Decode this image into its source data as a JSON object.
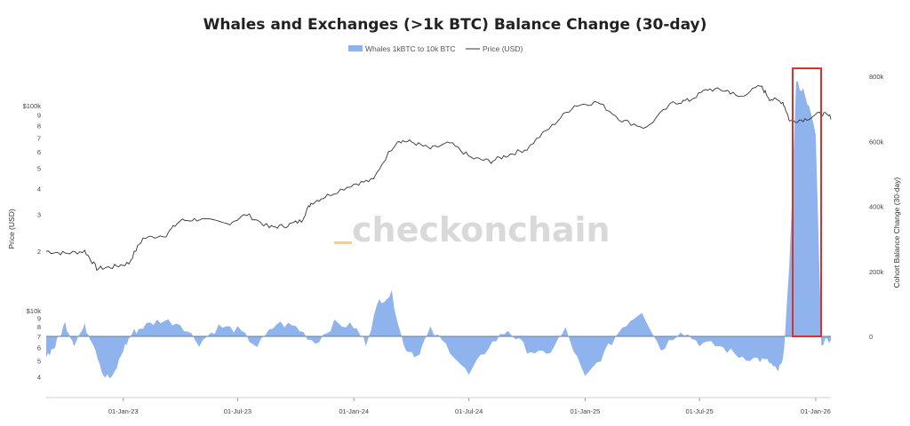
{
  "chart_data": {
    "type": "line+area",
    "title": "Whales and Exchanges (>1k BTC) Balance Change (30-day)",
    "legend": [
      {
        "name": "Whales 1kBTC to 10k BTC",
        "type": "area",
        "color": "#8fb3ec"
      },
      {
        "name": "Price (USD)",
        "type": "line",
        "color": "#333333"
      }
    ],
    "legend_position": "top-center",
    "watermark": "checkonchain",
    "x_tick_labels": [
      "01-Jan-23",
      "01-Jul-23",
      "01-Jan-24",
      "01-Jul-24",
      "01-Jan-25",
      "01-Jul-25",
      "01-Jan-26"
    ],
    "x_ticks": [
      "2023-01-01",
      "2023-07-01",
      "2024-01-01",
      "2024-07-01",
      "2025-01-01",
      "2025-07-01",
      "2026-01-01"
    ],
    "x_range": [
      "2022-09-01",
      "2026-01-25"
    ],
    "y_left_upper": {
      "label": "Price (USD)",
      "scale": "log",
      "range": [
        17000,
        110000
      ],
      "tick_labels": [
        "$100k",
        "9",
        "8",
        "7",
        "6",
        "5",
        "4",
        "3",
        "2"
      ],
      "tick_values": [
        100000,
        90000,
        80000,
        70000,
        60000,
        50000,
        40000,
        30000,
        20000
      ]
    },
    "y_left_lower": {
      "scale": "log",
      "tick_labels": [
        "$10k",
        "9",
        "8",
        "7",
        "6",
        "5",
        "4"
      ],
      "tick_values": [
        10000,
        9000,
        8000,
        7000,
        6000,
        5000,
        4000
      ]
    },
    "y_right": {
      "label": "Cohort Balance Change (30-day)",
      "range": [
        0,
        800000
      ],
      "tick_labels": [
        "800k",
        "600k",
        "400k",
        "200k",
        "0"
      ],
      "tick_values": [
        800000,
        600000,
        400000,
        200000,
        0
      ]
    },
    "series": [
      {
        "name": "Price (USD)",
        "type": "line",
        "x": [
          "2022-09-01",
          "2022-10-01",
          "2022-11-01",
          "2022-11-20",
          "2022-12-15",
          "2023-01-10",
          "2023-02-01",
          "2023-03-10",
          "2023-04-01",
          "2023-05-01",
          "2023-06-15",
          "2023-07-15",
          "2023-08-20",
          "2023-09-15",
          "2023-10-10",
          "2023-10-25",
          "2023-11-20",
          "2024-01-01",
          "2024-02-01",
          "2024-03-10",
          "2024-04-01",
          "2024-05-01",
          "2024-06-01",
          "2024-07-05",
          "2024-08-05",
          "2024-09-01",
          "2024-10-01",
          "2024-11-10",
          "2024-12-15",
          "2025-01-20",
          "2025-02-28",
          "2025-04-08",
          "2025-05-20",
          "2025-06-15",
          "2025-07-14",
          "2025-08-14",
          "2025-09-01",
          "2025-10-06",
          "2025-10-20",
          "2025-11-10",
          "2025-11-21",
          "2025-12-15",
          "2026-01-10",
          "2026-01-25"
        ],
        "values": [
          20000,
          19500,
          20000,
          16500,
          16800,
          17500,
          23000,
          24000,
          28000,
          28500,
          27000,
          30000,
          26000,
          26500,
          28000,
          34000,
          37000,
          42000,
          44000,
          68000,
          67000,
          62000,
          66000,
          56000,
          54000,
          58000,
          62000,
          80000,
          100000,
          104000,
          85000,
          78000,
          103000,
          106000,
          120000,
          118000,
          110000,
          124000,
          108000,
          104000,
          84000,
          86000,
          92000,
          88000
        ]
      },
      {
        "name": "Whales 1kBTC to 10k BTC",
        "type": "area",
        "x": [
          "2022-09-01",
          "2022-09-15",
          "2022-10-01",
          "2022-10-15",
          "2022-11-01",
          "2022-11-15",
          "2022-12-01",
          "2022-12-15",
          "2023-01-01",
          "2023-01-15",
          "2023-02-01",
          "2023-03-01",
          "2023-04-01",
          "2023-05-01",
          "2023-06-01",
          "2023-07-01",
          "2023-08-01",
          "2023-09-01",
          "2023-10-01",
          "2023-11-01",
          "2023-12-01",
          "2024-01-01",
          "2024-01-20",
          "2024-02-10",
          "2024-03-01",
          "2024-03-20",
          "2024-04-10",
          "2024-05-01",
          "2024-06-01",
          "2024-07-01",
          "2024-08-01",
          "2024-09-01",
          "2024-10-01",
          "2024-11-01",
          "2024-12-01",
          "2025-01-01",
          "2025-02-01",
          "2025-03-01",
          "2025-04-01",
          "2025-05-01",
          "2025-06-01",
          "2025-07-01",
          "2025-08-01",
          "2025-09-01",
          "2025-10-01",
          "2025-10-20",
          "2025-11-01",
          "2025-11-10",
          "2025-11-20",
          "2025-12-01",
          "2025-12-15",
          "2026-01-01",
          "2026-01-10",
          "2026-01-25"
        ],
        "values": [
          -60000,
          -30000,
          40000,
          -20000,
          30000,
          -20000,
          -120000,
          -130000,
          -40000,
          10000,
          30000,
          50000,
          40000,
          -20000,
          30000,
          20000,
          -30000,
          40000,
          30000,
          -20000,
          40000,
          30000,
          -20000,
          110000,
          130000,
          -30000,
          -60000,
          20000,
          -40000,
          -120000,
          -30000,
          20000,
          -40000,
          -60000,
          20000,
          -130000,
          -50000,
          30000,
          80000,
          -40000,
          20000,
          -20000,
          -30000,
          -60000,
          -70000,
          -80000,
          -110000,
          -80000,
          200000,
          780000,
          750000,
          620000,
          -20000,
          -5000
        ]
      }
    ],
    "annotation": "red rectangle highlighting Nov-2025 to Jan-2026"
  }
}
